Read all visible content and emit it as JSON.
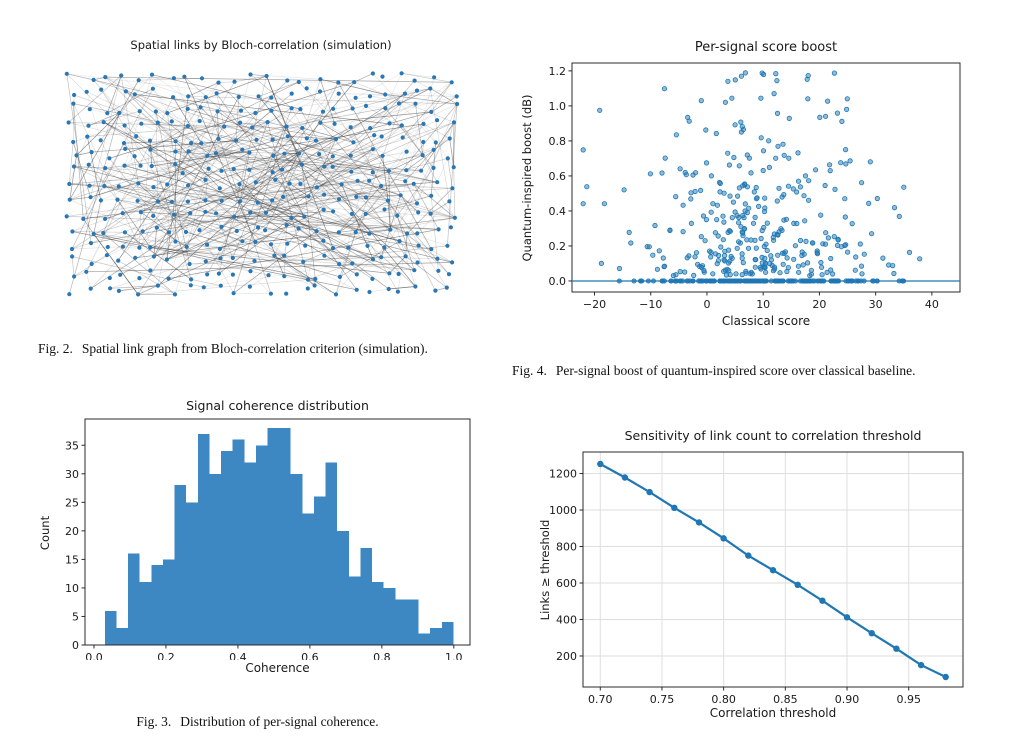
{
  "page": {
    "background": "#ffffff"
  },
  "style": {
    "accent_blue": "#1f77b4",
    "scatter_fill": "rgba(31,119,180,0.5)",
    "bar_fill": "#3d87c2",
    "node_fill": "#2878b8",
    "edge_color_rgb": "48,48,48",
    "grid_color": "#dedede",
    "spine_color": "#2b2b2b",
    "tick_label_color": "#1a1a1a"
  },
  "chart_data": [
    {
      "id": "fig2",
      "type": "network",
      "title": "Spatial links by Bloch-correlation (simulation)",
      "caption_label": "Fig. 2.",
      "caption": "Spatial link graph from Bloch-correlation criterion (simulation).",
      "axes_visible": false,
      "generator": {
        "seed": 7,
        "grid_cols": 24,
        "grid_rows": 15,
        "jitter_frac": 0.32,
        "n_edges": 560
      }
    },
    {
      "id": "fig4",
      "type": "scatter",
      "title": "Per-signal score boost",
      "xlabel": "Classical score",
      "ylabel": "Quantum-inspired boost (dB)",
      "caption_label": "Fig. 4.",
      "caption": "Per-signal boost of quantum-inspired score over classical baseline.",
      "xlim": [
        -24,
        45
      ],
      "ylim": [
        -0.063,
        1.245
      ],
      "xticks": [
        -20,
        -10,
        0,
        10,
        20,
        30,
        40
      ],
      "yticks": [
        0.0,
        0.2,
        0.4,
        0.6,
        0.8,
        1.0,
        1.2
      ],
      "x_decimals": 0,
      "y_decimals": 1,
      "baseline_y": 0.0,
      "generator": {
        "seed": 12,
        "n_points": 340,
        "x_mean": 9.5,
        "x_sd": 11.5,
        "x_min": -22,
        "x_max": 43,
        "y_min": 0.03,
        "y_max": 1.19,
        "n_zero_points": 175,
        "zero_x_mean": 10,
        "zero_x_sd": 10.5,
        "zero_x_min": -18.5,
        "zero_x_max": 38
      }
    },
    {
      "id": "fig3",
      "type": "histogram",
      "title": "Signal coherence distribution",
      "xlabel": "Coherence",
      "ylabel": "Count",
      "caption_label": "Fig. 3.",
      "caption": "Distribution of per-signal coherence.",
      "bin_start": 0.03,
      "bin_width": 0.0323,
      "counts": [
        6,
        3,
        16,
        11,
        14,
        15,
        28,
        25,
        37,
        30,
        34,
        36,
        32,
        35,
        38,
        38,
        30,
        23,
        26,
        32,
        20,
        12,
        17,
        11,
        10,
        8,
        8,
        2,
        3,
        4
      ],
      "xlim": [
        -0.025,
        1.045
      ],
      "ylim": [
        0,
        39.6
      ],
      "xticks": [
        0.0,
        0.2,
        0.4,
        0.6,
        0.8,
        1.0
      ],
      "yticks": [
        0,
        5,
        10,
        15,
        20,
        25,
        30,
        35
      ],
      "x_decimals": 1,
      "y_decimals": 0
    },
    {
      "id": "fig5",
      "type": "line",
      "title": "Sensitivity of link count to correlation threshold",
      "xlabel": "Correlation threshold",
      "ylabel": "Links ≥ threshold",
      "x": [
        0.7,
        0.72,
        0.74,
        0.76,
        0.78,
        0.8,
        0.82,
        0.84,
        0.86,
        0.88,
        0.9,
        0.92,
        0.94,
        0.96,
        0.98
      ],
      "y": [
        1252,
        1178,
        1098,
        1012,
        932,
        845,
        750,
        670,
        590,
        503,
        412,
        325,
        240,
        150,
        85
      ],
      "xlim": [
        0.686,
        0.994
      ],
      "ylim": [
        30,
        1318
      ],
      "xticks": [
        0.7,
        0.75,
        0.8,
        0.85,
        0.9,
        0.95
      ],
      "yticks": [
        200,
        400,
        600,
        800,
        1000,
        1200
      ],
      "x_decimals": 2,
      "y_decimals": 0,
      "grid": true
    }
  ]
}
